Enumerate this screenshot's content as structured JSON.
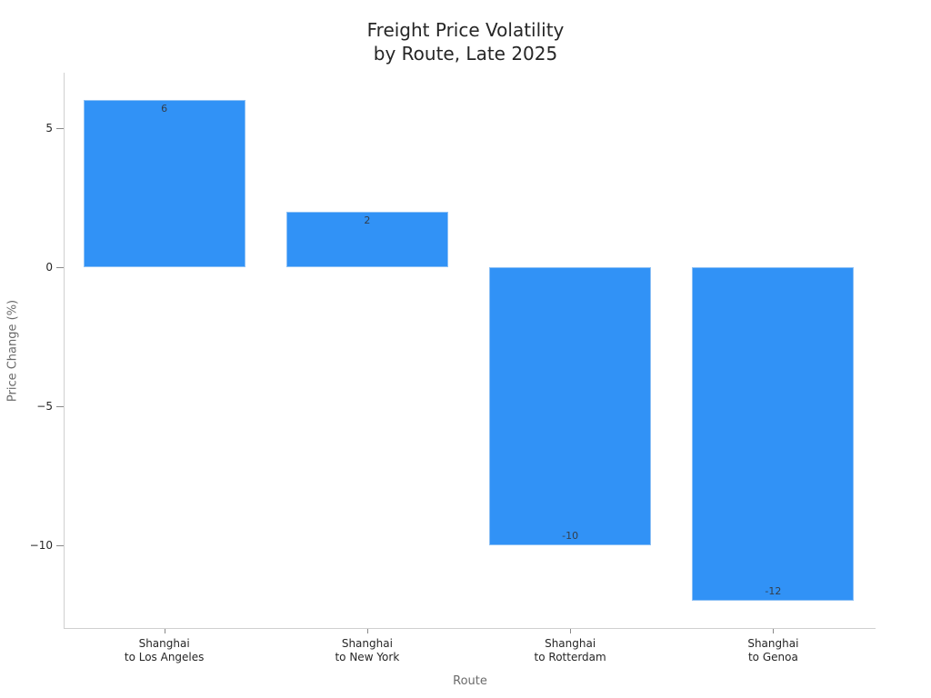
{
  "chart_data": {
    "type": "bar",
    "title": "Freight Price Volatility by Route, Late 2025",
    "title_lines": [
      "Freight Price Volatility",
      "by Route, Late 2025"
    ],
    "xlabel": "Route",
    "ylabel": "Price Change (%)",
    "categories": [
      "Shanghai to Los Angeles",
      "Shanghai to New York",
      "Shanghai to Rotterdam",
      "Shanghai to Genoa"
    ],
    "category_lines": [
      [
        "Shanghai",
        "to Los Angeles"
      ],
      [
        "Shanghai",
        "to New York"
      ],
      [
        "Shanghai",
        "to Rotterdam"
      ],
      [
        "Shanghai",
        "to Genoa"
      ]
    ],
    "values": [
      6,
      2,
      -10,
      -12
    ],
    "data_labels": [
      "6",
      "2",
      "-10",
      "-12"
    ],
    "ylim": [
      -13,
      6.9
    ],
    "yticks": [
      5,
      0,
      -5,
      -10
    ],
    "ytick_labels": [
      "5",
      "0",
      "−5",
      "−10"
    ],
    "grid": false,
    "legend": null,
    "bar_color": "#3192f6"
  }
}
